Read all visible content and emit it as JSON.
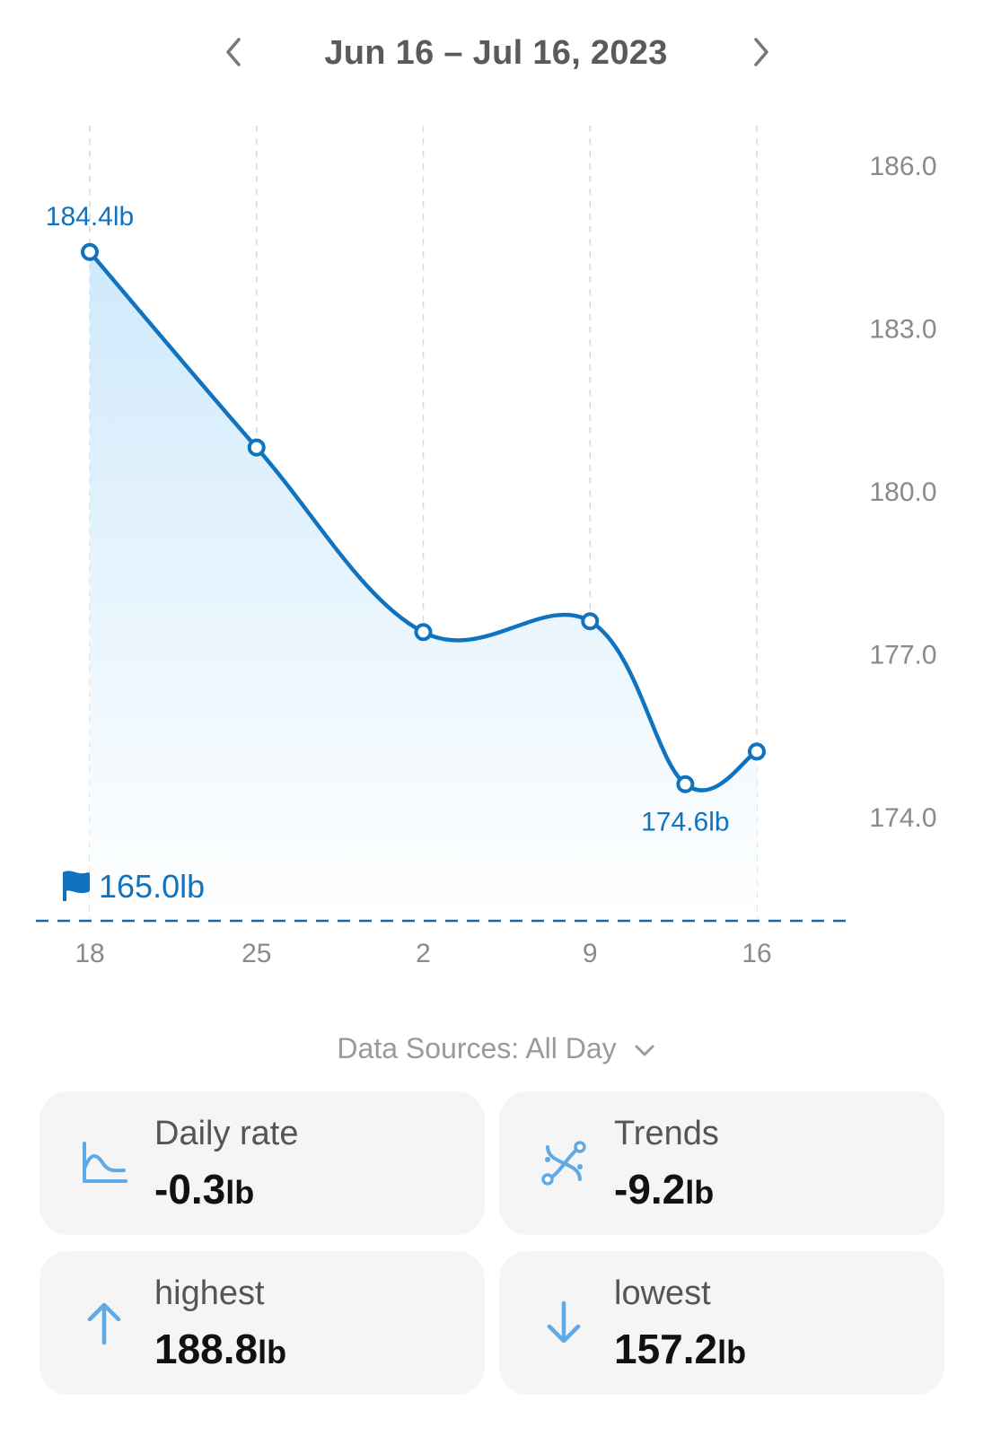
{
  "header": {
    "date_range": "Jun 16 – Jul 16, 2023",
    "prev_icon": "chevron-left-icon",
    "next_icon": "chevron-right-icon"
  },
  "chart_data": {
    "type": "area",
    "x": [
      "Jun 18",
      "Jun 25",
      "Jul 2",
      "Jul 9",
      "Jul 13",
      "Jul 16"
    ],
    "x_tick_labels": [
      "18",
      "25",
      "2",
      "9",
      "16"
    ],
    "values": [
      184.4,
      180.8,
      177.4,
      177.6,
      174.6,
      175.2
    ],
    "y_tick_labels": [
      "186.0",
      "183.0",
      "180.0",
      "177.0",
      "174.0"
    ],
    "ylim": [
      174.0,
      186.0
    ],
    "unit": "lb",
    "annotations": {
      "max_label": "184.4lb",
      "min_label": "174.6lb",
      "goal_label": "165.0lb",
      "goal_value": 165.0
    },
    "goal_icon": "flag-icon",
    "line_color": "#0f73c0",
    "fill_color": "#d7edfb",
    "grid": "vertical-dashed",
    "y_axis_position": "right"
  },
  "data_sources": {
    "label": "Data Sources: All Day",
    "icon": "chevron-down-icon"
  },
  "stats": [
    {
      "label": "Daily rate",
      "value": "-0.3",
      "unit": "lb",
      "icon": "area-chart-icon"
    },
    {
      "label": "Trends",
      "value": "-9.2",
      "unit": "lb",
      "icon": "trend-path-icon"
    },
    {
      "label": "highest",
      "value": "188.8",
      "unit": "lb",
      "icon": "arrow-up-icon"
    },
    {
      "label": "lowest",
      "value": "157.2",
      "unit": "lb",
      "icon": "arrow-down-icon"
    }
  ],
  "colors": {
    "accent": "#0f73c0",
    "icon_light": "#5fa9e6",
    "card_bg": "#f5f5f5"
  }
}
